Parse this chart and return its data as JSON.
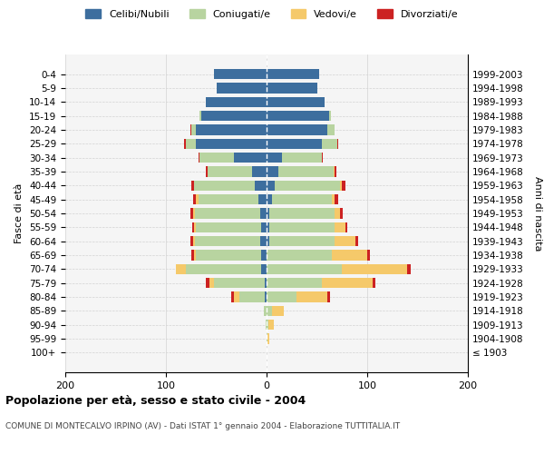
{
  "age_groups": [
    "100+",
    "95-99",
    "90-94",
    "85-89",
    "80-84",
    "75-79",
    "70-74",
    "65-69",
    "60-64",
    "55-59",
    "50-54",
    "45-49",
    "40-44",
    "35-39",
    "30-34",
    "25-29",
    "20-24",
    "15-19",
    "10-14",
    "5-9",
    "0-4"
  ],
  "birth_years": [
    "≤ 1903",
    "1904-1908",
    "1909-1913",
    "1914-1918",
    "1919-1923",
    "1924-1928",
    "1929-1933",
    "1934-1938",
    "1939-1943",
    "1944-1948",
    "1949-1953",
    "1954-1958",
    "1959-1963",
    "1964-1968",
    "1969-1973",
    "1974-1978",
    "1979-1983",
    "1984-1988",
    "1989-1993",
    "1994-1998",
    "1999-2003"
  ],
  "maschi": {
    "celibi": [
      0,
      0,
      0,
      0,
      2,
      2,
      5,
      5,
      6,
      5,
      6,
      8,
      12,
      14,
      32,
      70,
      70,
      65,
      60,
      50,
      52
    ],
    "coniugati": [
      0,
      0,
      1,
      3,
      25,
      50,
      75,
      65,
      65,
      65,
      65,
      60,
      60,
      45,
      35,
      10,
      5,
      2,
      0,
      0,
      0
    ],
    "vedovi": [
      0,
      0,
      0,
      0,
      5,
      5,
      10,
      2,
      2,
      2,
      2,
      2,
      0,
      0,
      0,
      0,
      0,
      0,
      0,
      0,
      0
    ],
    "divorziati": [
      0,
      0,
      0,
      0,
      3,
      3,
      0,
      3,
      3,
      2,
      3,
      3,
      3,
      1,
      1,
      2,
      1,
      0,
      0,
      0,
      0
    ]
  },
  "femmine": {
    "nubili": [
      0,
      0,
      0,
      0,
      0,
      0,
      0,
      0,
      3,
      3,
      3,
      5,
      8,
      12,
      15,
      55,
      60,
      62,
      58,
      50,
      52
    ],
    "coniugate": [
      0,
      1,
      2,
      5,
      30,
      55,
      75,
      65,
      65,
      65,
      65,
      60,
      65,
      55,
      40,
      15,
      8,
      2,
      0,
      0,
      0
    ],
    "vedove": [
      0,
      2,
      5,
      12,
      30,
      50,
      65,
      35,
      20,
      10,
      5,
      3,
      2,
      1,
      0,
      0,
      0,
      0,
      0,
      0,
      0
    ],
    "divorziate": [
      0,
      0,
      0,
      0,
      3,
      3,
      3,
      3,
      3,
      2,
      3,
      3,
      3,
      1,
      1,
      1,
      0,
      0,
      0,
      0,
      0
    ]
  },
  "colors": {
    "celibi": "#3d6e9e",
    "coniugati": "#b8d4a0",
    "vedovi": "#f5c96a",
    "divorziati": "#cc2222"
  },
  "xlim": 200,
  "title": "Popolazione per età, sesso e stato civile - 2004",
  "subtitle": "COMUNE DI MONTECALVO IRPINO (AV) - Dati ISTAT 1° gennaio 2004 - Elaborazione TUTTITALIA.IT",
  "ylabel_left": "Fasce di età",
  "ylabel_right": "Anni di nascita",
  "legend_labels": [
    "Celibi/Nubili",
    "Coniugati/e",
    "Vedovi/e",
    "Divorziati/e"
  ]
}
